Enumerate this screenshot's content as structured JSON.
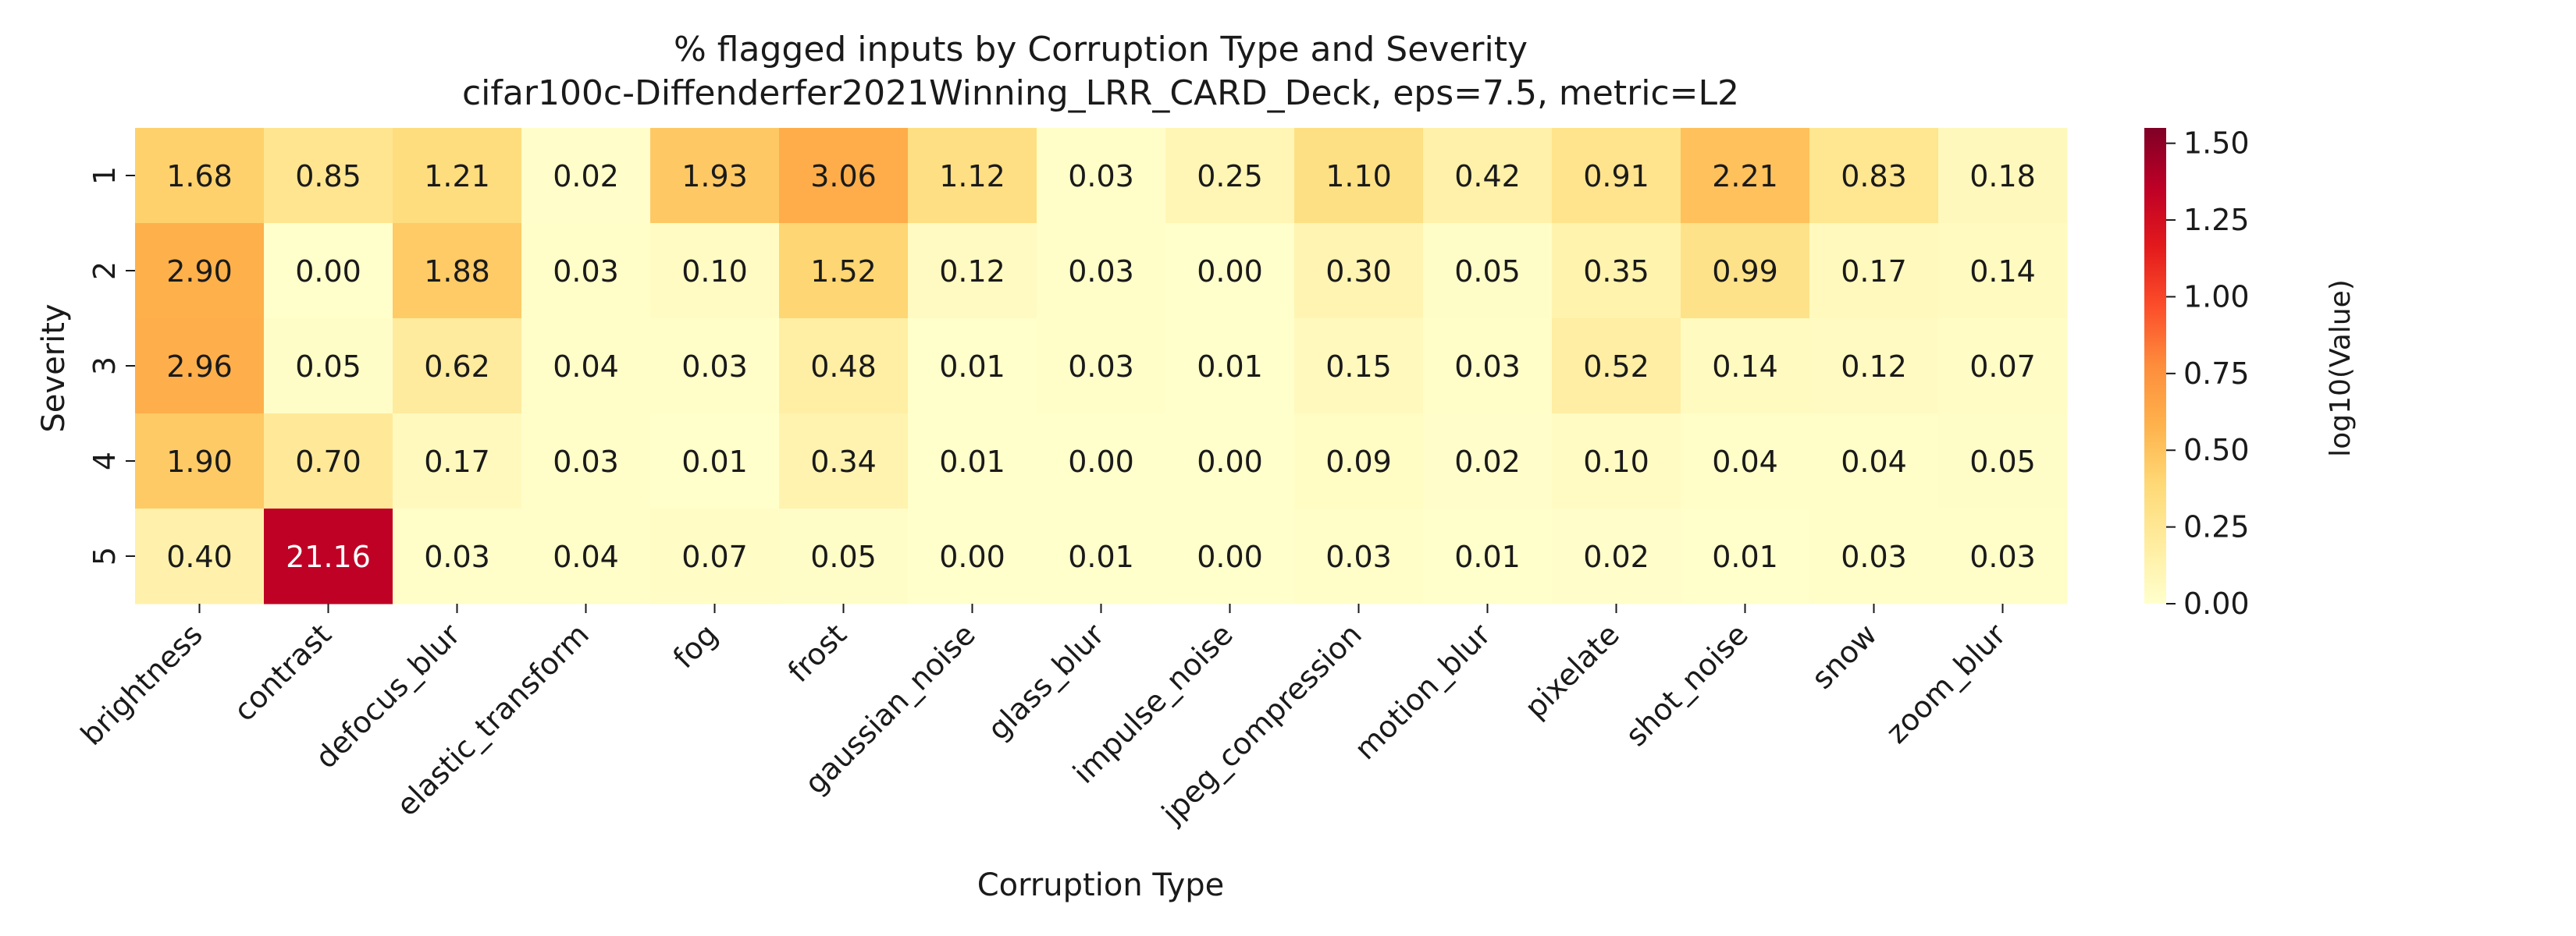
{
  "chart_data": {
    "type": "heatmap",
    "title": "% flagged inputs by Corruption Type and Severity",
    "subtitle": "cifar100c-Diffenderfer2021Winning_LRR_CARD_Deck, eps=7.5, metric=L2",
    "xlabel": "Corruption Type",
    "ylabel": "Severity",
    "x_categories": [
      "brightness",
      "contrast",
      "defocus_blur",
      "elastic_transform",
      "fog",
      "frost",
      "gaussian_noise",
      "glass_blur",
      "impulse_noise",
      "jpeg_compression",
      "motion_blur",
      "pixelate",
      "shot_noise",
      "snow",
      "zoom_blur"
    ],
    "y_categories": [
      "1",
      "2",
      "3",
      "4",
      "5"
    ],
    "values": [
      [
        1.68,
        0.85,
        1.21,
        0.02,
        1.93,
        3.06,
        1.12,
        0.03,
        0.25,
        1.1,
        0.42,
        0.91,
        2.21,
        0.83,
        0.18
      ],
      [
        2.9,
        0.0,
        1.88,
        0.03,
        0.1,
        1.52,
        0.12,
        0.03,
        0.0,
        0.3,
        0.05,
        0.35,
        0.99,
        0.17,
        0.14
      ],
      [
        2.96,
        0.05,
        0.62,
        0.04,
        0.03,
        0.48,
        0.01,
        0.03,
        0.01,
        0.15,
        0.03,
        0.52,
        0.14,
        0.12,
        0.07
      ],
      [
        1.9,
        0.7,
        0.17,
        0.03,
        0.01,
        0.34,
        0.01,
        0.0,
        0.0,
        0.09,
        0.02,
        0.1,
        0.04,
        0.04,
        0.05
      ],
      [
        0.4,
        21.16,
        0.03,
        0.04,
        0.07,
        0.05,
        0.0,
        0.01,
        0.0,
        0.03,
        0.01,
        0.02,
        0.01,
        0.03,
        0.03
      ]
    ],
    "color_scale": "log10(value+1)",
    "colorbar": {
      "label": "log10(Value)",
      "range": [
        0,
        1.55
      ],
      "ticks": [
        "0.00",
        "0.25",
        "0.50",
        "0.75",
        "1.00",
        "1.25",
        "1.50"
      ],
      "colors": [
        "#ffffcc",
        "#ffeda0",
        "#fed976",
        "#feb24c",
        "#fd8d3c",
        "#fc4e2a",
        "#e31a1c",
        "#bd0026",
        "#800026"
      ]
    },
    "grid": false
  }
}
